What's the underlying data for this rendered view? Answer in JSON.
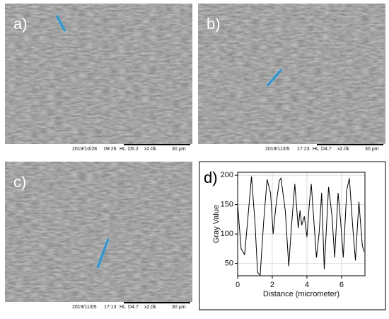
{
  "panels": [
    {
      "label": "a)",
      "info": [
        "2019/10/28",
        "09:26",
        "HL",
        "D5.2",
        "x2.0k",
        "30 μm"
      ]
    },
    {
      "label": "b)",
      "info": [
        "2019/11/05",
        "17:23",
        "HL",
        "D4.7",
        "x2.0k",
        "30 μm"
      ]
    },
    {
      "label": "c)",
      "info": [
        "2019/11/05",
        "17:13",
        "HL",
        "D4.7",
        "x2.0k",
        "30 μm"
      ]
    },
    {
      "label": "d)"
    }
  ],
  "chart_data": {
    "type": "line",
    "x_label": "Distance (micrometer)",
    "y_label": "Gray Value",
    "xlim": [
      0,
      7.35
    ],
    "xticks": [
      0,
      2,
      4,
      6
    ],
    "ylim": [
      29,
      205
    ],
    "yticks": [
      50,
      100,
      150,
      200
    ],
    "grid": true,
    "series": [
      {
        "color": "#000000",
        "x": [
          0,
          0.2,
          0.4,
          0.6,
          0.8,
          1.0,
          1.15,
          1.3,
          1.5,
          1.7,
          1.9,
          2.05,
          2.2,
          2.4,
          2.5,
          2.75,
          2.95,
          3.1,
          3.3,
          3.5,
          3.6,
          3.7,
          3.85,
          4.0,
          4.15,
          4.25,
          4.55,
          4.7,
          4.85,
          5.0,
          5.25,
          5.45,
          5.6,
          5.8,
          5.95,
          6.1,
          6.3,
          6.45,
          6.65,
          6.8,
          7.0,
          7.2,
          7.3
        ],
        "values": [
          150,
          75,
          65,
          130,
          198,
          120,
          35,
          30,
          120,
          193,
          170,
          100,
          145,
          190,
          195,
          140,
          45,
          110,
          185,
          110,
          140,
          115,
          130,
          95,
          155,
          185,
          60,
          100,
          170,
          40,
          180,
          130,
          60,
          170,
          120,
          60,
          175,
          195,
          110,
          55,
          155,
          80,
          70
        ]
      }
    ]
  }
}
